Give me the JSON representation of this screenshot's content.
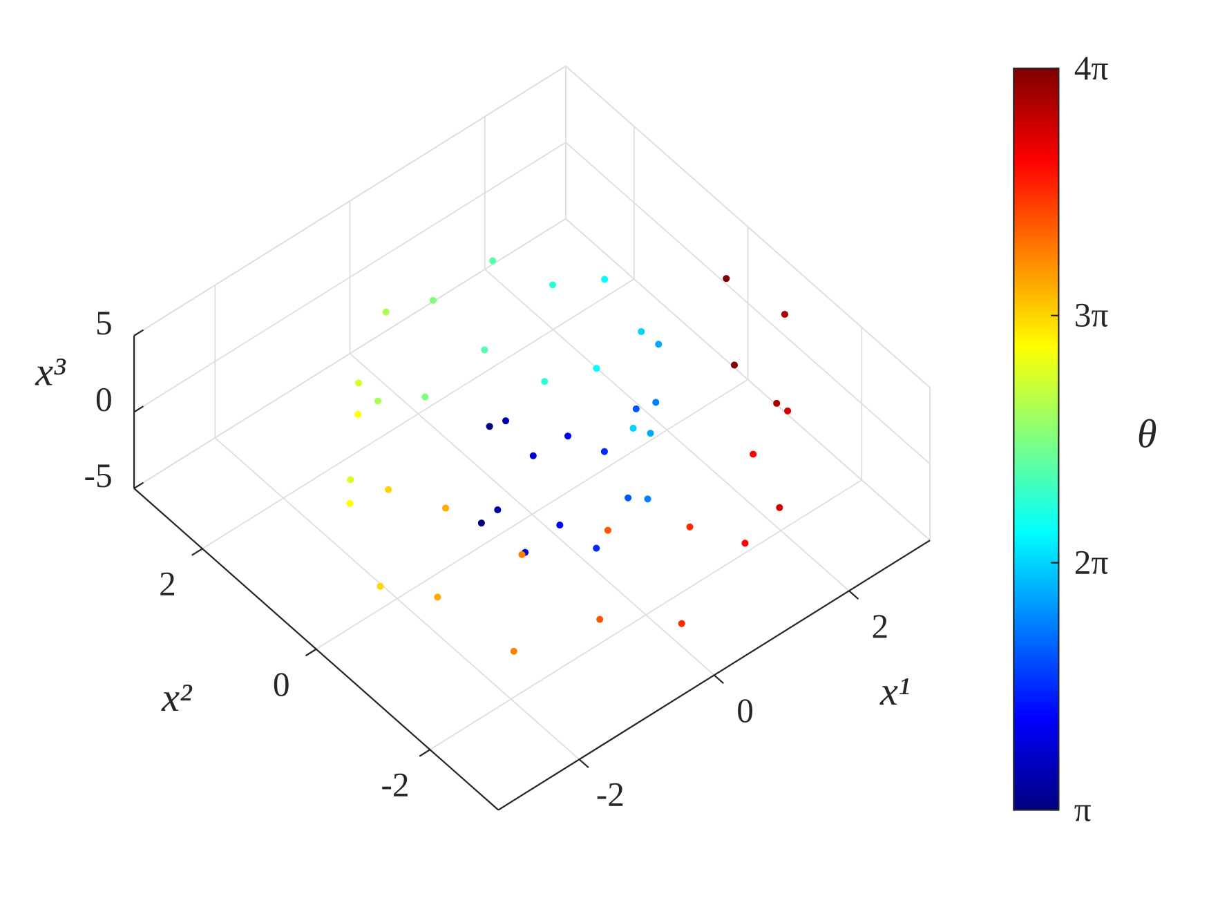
{
  "chart_data": {
    "type": "scatter3d",
    "colormap": "jet",
    "xlabel": "x¹",
    "ylabel": "x²",
    "zlabel": "x³",
    "colorbar_label": "θ",
    "x": [
      -0.75,
      -0.63,
      -0.78,
      -0.66,
      -0.66,
      -0.54,
      -0.39,
      -0.27,
      0,
      0.12,
      0.47,
      0.59,
      0.93,
      1.05,
      1.3,
      1.42,
      1.5,
      1.62,
      1.47,
      1.59,
      1.19,
      1.31,
      0.68,
      0.8,
      0,
      0.12,
      -0.75,
      -0.63,
      -1.46,
      -1.34,
      -2.0,
      -1.88,
      -2.25,
      -2.13,
      -2.16,
      -2.04,
      -1.73,
      -1.61,
      -0.97,
      -0.85,
      0,
      0.12,
      1.04,
      1.16,
      1.99,
      2.11,
      2.69,
      2.81,
      3.0,
      2.88
    ],
    "y": [
      0,
      0,
      -0.32,
      -0.32,
      -0.66,
      -0.66,
      -0.95,
      -0.95,
      -1.13,
      -1.13,
      -1.13,
      -1.13,
      -0.93,
      -0.93,
      -0.54,
      -0.54,
      0,
      0,
      0.61,
      0.61,
      1.19,
      1.19,
      1.64,
      1.64,
      1.88,
      1.88,
      1.82,
      1.82,
      1.46,
      1.46,
      0.83,
      0.83,
      0,
      0,
      -0.9,
      -0.9,
      -1.73,
      -1.73,
      -2.34,
      -2.34,
      -2.63,
      -2.63,
      -2.51,
      -2.51,
      -1.99,
      -1.99,
      -1.11,
      -1.11,
      0,
      0
    ],
    "z": [
      -3.5,
      2.5,
      -1.5,
      4,
      -3.5,
      2.5,
      -1.5,
      4,
      -3.5,
      2.5,
      -1.5,
      4,
      -3.5,
      2.5,
      -1.5,
      4,
      -3.5,
      2.5,
      -1.5,
      4,
      -3.5,
      2.5,
      -1.5,
      4,
      -3.5,
      2.5,
      -1.5,
      4,
      -3.5,
      2.5,
      -1.5,
      4,
      -3.5,
      2.5,
      -1.5,
      4,
      -3.5,
      2.5,
      -1.5,
      4,
      -3.5,
      2.5,
      -1.5,
      4,
      -3.5,
      2.5,
      -1.5,
      4,
      -3.5,
      2.5
    ],
    "c": [
      3.14,
      3.14,
      3.53,
      3.53,
      3.93,
      3.93,
      4.32,
      4.32,
      4.71,
      4.71,
      5.11,
      5.11,
      5.5,
      5.5,
      5.89,
      5.89,
      6.28,
      6.28,
      6.68,
      6.68,
      7.07,
      7.07,
      7.46,
      7.46,
      7.85,
      7.85,
      8.25,
      8.25,
      8.64,
      8.64,
      9.03,
      9.03,
      9.42,
      9.42,
      9.82,
      9.82,
      10.21,
      10.21,
      10.6,
      10.6,
      11.0,
      11.0,
      11.39,
      11.39,
      11.78,
      11.78,
      12.17,
      12.17,
      12.57,
      12.57
    ],
    "xlim": [
      -3.2,
      3.2
    ],
    "ylim": [
      -3.2,
      3.2
    ],
    "zlim": [
      -5,
      5
    ],
    "clim": [
      3.1416,
      12.566
    ],
    "xticks": [
      -2,
      0,
      2
    ],
    "yticks": [
      -2,
      0,
      2
    ],
    "zticks": [
      -5,
      0,
      5
    ],
    "cticks": [
      {
        "value": 3.1416,
        "label": "π"
      },
      {
        "value": 6.2832,
        "label": "2π"
      },
      {
        "value": 9.4248,
        "label": "3π"
      },
      {
        "value": 12.566,
        "label": "4π"
      }
    ],
    "grid": true
  }
}
